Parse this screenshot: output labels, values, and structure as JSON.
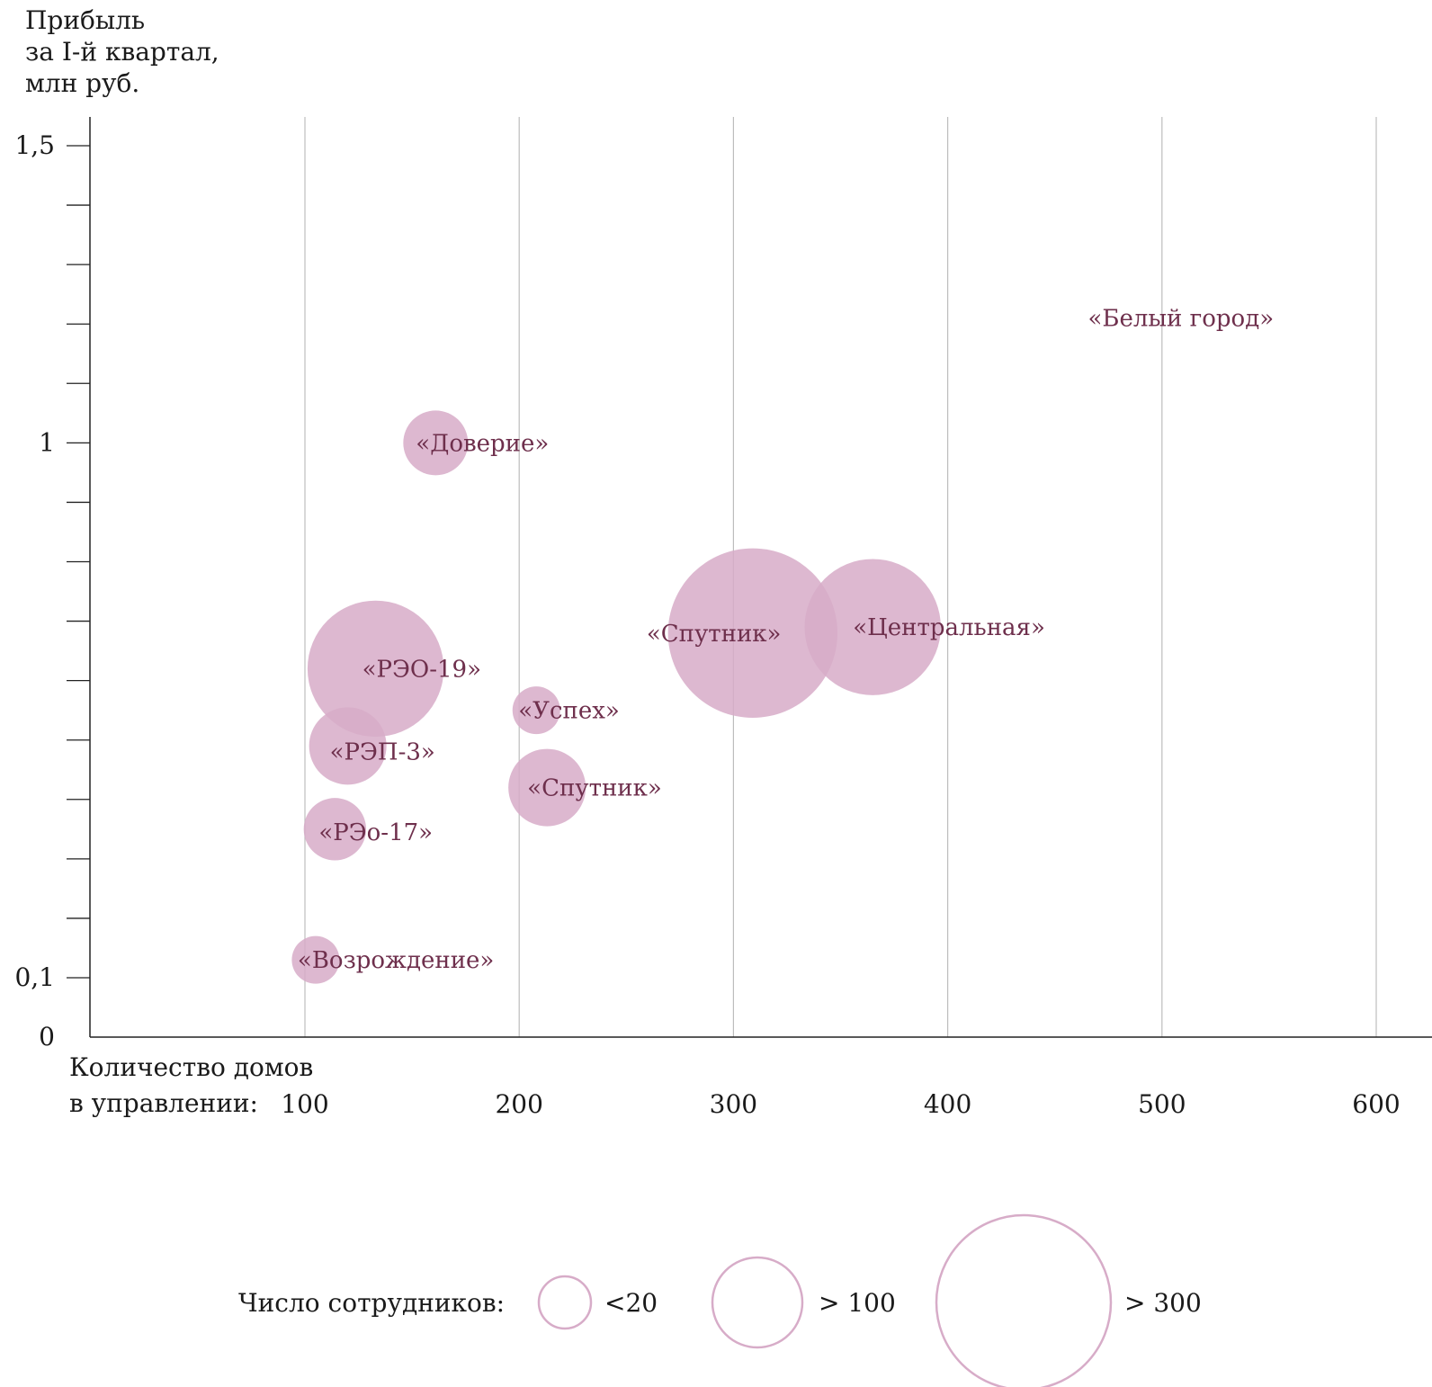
{
  "chart_data": {
    "type": "scatter",
    "title": "",
    "ylabel_lines": [
      "Прибыль",
      "за I-й квартал,",
      "млн руб."
    ],
    "xlabel_lines": [
      "Количество домов",
      "в управлении:"
    ],
    "x_ticks": [
      {
        "value": 100,
        "label": "100"
      },
      {
        "value": 200,
        "label": "200"
      },
      {
        "value": 300,
        "label": "300"
      },
      {
        "value": 400,
        "label": "400"
      },
      {
        "value": 500,
        "label": "500"
      },
      {
        "value": 600,
        "label": "600"
      }
    ],
    "y_ticks": [
      {
        "value": 0,
        "label": "0"
      },
      {
        "value": 0.1,
        "label": "0,1"
      },
      {
        "value": 1,
        "label": "1"
      },
      {
        "value": 1.5,
        "label": "1,5"
      }
    ],
    "y_minor_step": 0.1,
    "xlim": [
      0,
      625
    ],
    "ylim": [
      0,
      1.55
    ],
    "grid": "vertical",
    "points": [
      {
        "label": "«Доверие»",
        "x": 161,
        "y": 1.0,
        "staff": 70
      },
      {
        "label": "«Спутник»",
        "x": 309,
        "y": 0.68,
        "staff": 480
      },
      {
        "label": "«Центральная»",
        "x": 365,
        "y": 0.69,
        "staff": 310
      },
      {
        "label": "«РЭО-19»",
        "x": 133,
        "y": 0.62,
        "staff": 310
      },
      {
        "label": "«Успех»",
        "x": 208,
        "y": 0.55,
        "staff": 38
      },
      {
        "label": "«РЭП-3»",
        "x": 120,
        "y": 0.49,
        "staff": 100
      },
      {
        "label": "«Спутник»",
        "x": 213,
        "y": 0.42,
        "staff": 100
      },
      {
        "label": "«РЭо-17»",
        "x": 114,
        "y": 0.35,
        "staff": 65
      },
      {
        "label": "«Возрождение»",
        "x": 105,
        "y": 0.13,
        "staff": 38
      },
      {
        "label": "«Белый город»",
        "x": 520,
        "y": 1.21,
        "staff": 0
      }
    ],
    "bubble_color": "#d7acc8",
    "label_color": "#6e2f4c",
    "legend": {
      "title": "Число сотрудников:",
      "placement": "bottom",
      "items": [
        {
          "label": "<20",
          "staff": 38
        },
        {
          "label": "> 100",
          "staff": 110
        },
        {
          "label": "> 300",
          "staff": 400
        }
      ]
    }
  }
}
